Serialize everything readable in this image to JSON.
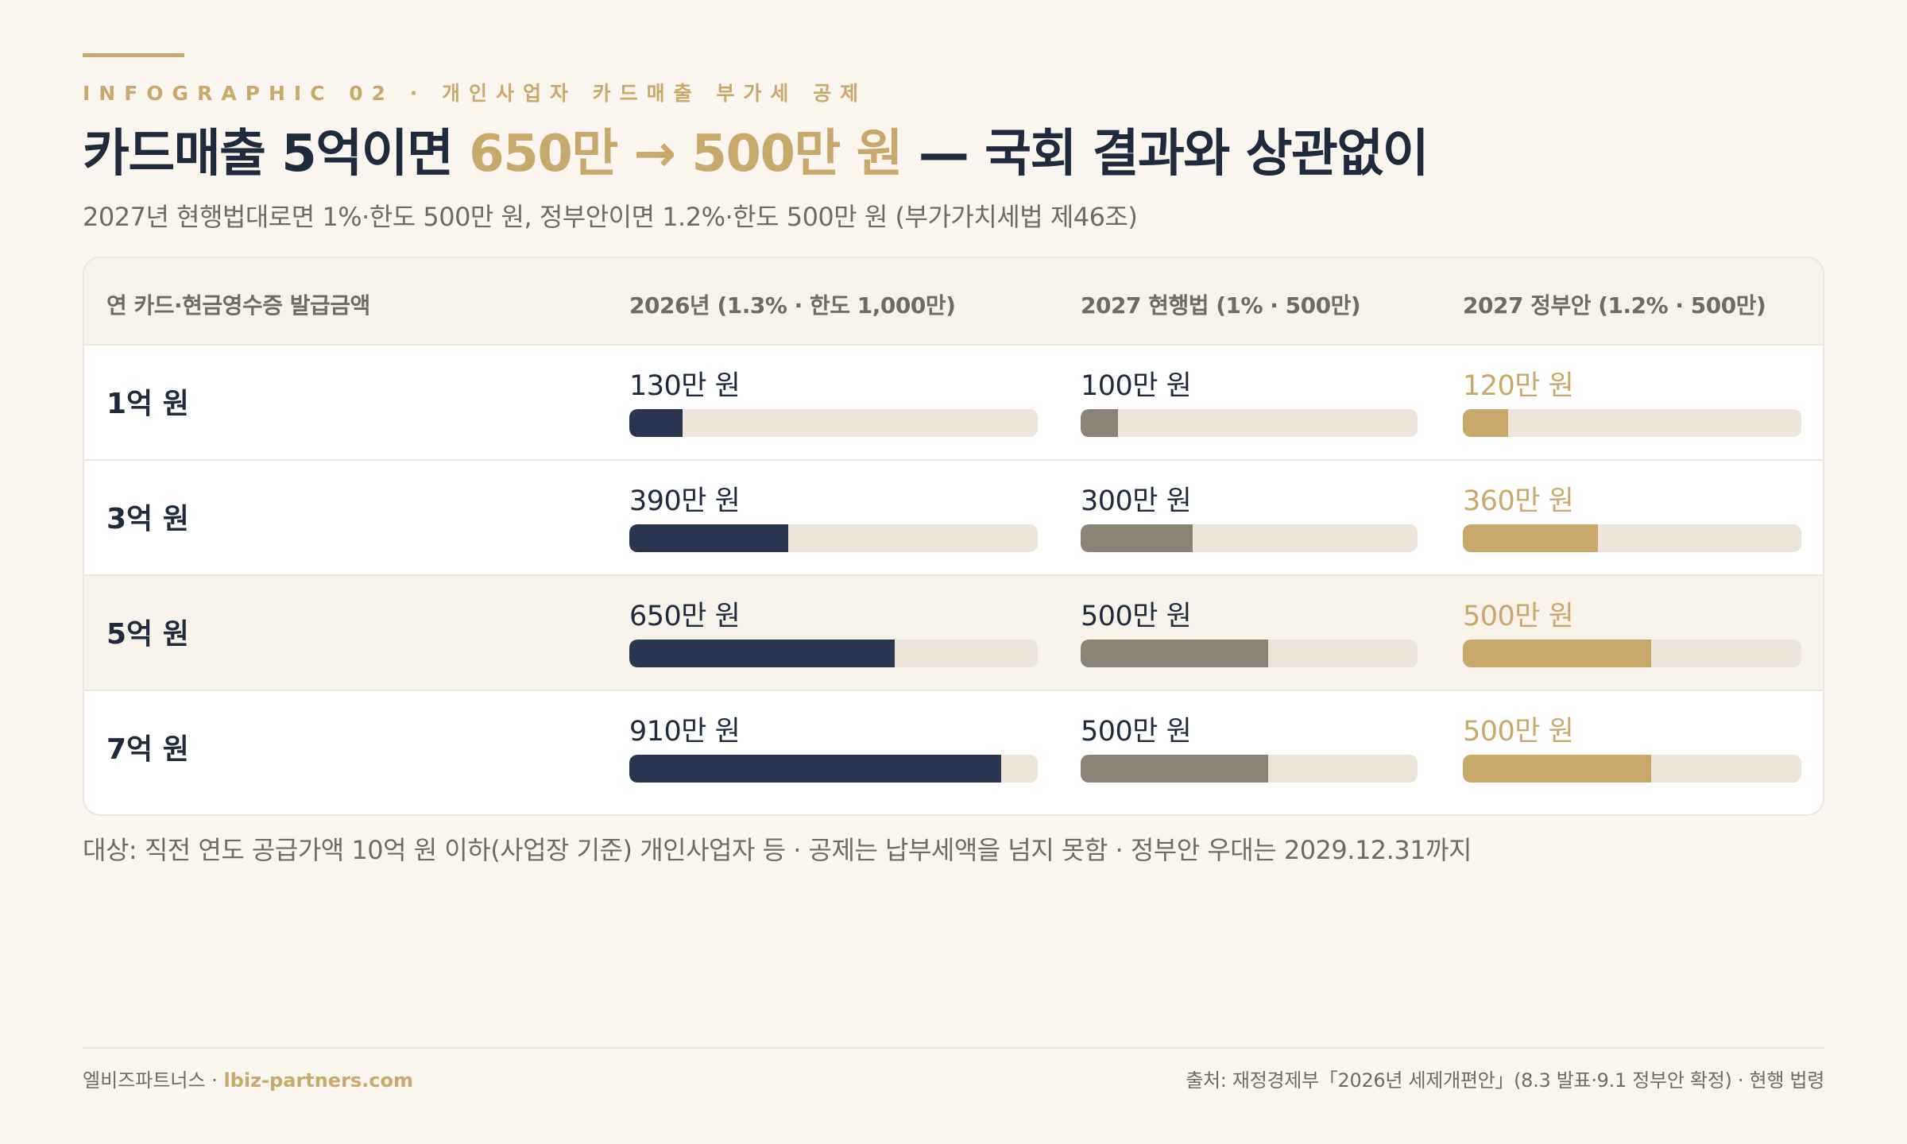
{
  "header": {
    "eyebrow": "INFOGRAPHIC 02 · 개인사업자 카드매출 부가세 공제",
    "title_part1": "카드매출 5억이면 ",
    "title_highlight": "650만 → 500만 원",
    "title_part2": " — 국회 결과와 상관없이",
    "subtitle": "2027년 현행법대로면 1%·한도 500만 원, 정부안이면 1.2%·한도 500만 원 (부가가치세법 제46조)"
  },
  "colors": {
    "accent_gold": "#c9a96b",
    "navy": "#2a3550",
    "gray": "#8b8376",
    "track": "#ede5d9"
  },
  "chart_data": {
    "type": "table",
    "columns": [
      "연 카드·현금영수증 발급금액",
      "2026년 (1.3% · 한도 1,000만)",
      "2027 현행법 (1% · 500만)",
      "2027 정부안 (1.2% · 500만)"
    ],
    "rows": [
      {
        "label": "1억 원",
        "values": [
          130,
          100,
          120
        ],
        "labels": [
          "130만 원",
          "100만 원",
          "120만 원"
        ]
      },
      {
        "label": "3억 원",
        "values": [
          390,
          300,
          360
        ],
        "labels": [
          "390만 원",
          "300만 원",
          "360만 원"
        ]
      },
      {
        "label": "5억 원",
        "values": [
          650,
          500,
          500
        ],
        "labels": [
          "650만 원",
          "500만 원",
          "500만 원"
        ]
      },
      {
        "label": "7억 원",
        "values": [
          910,
          500,
          500
        ],
        "labels": [
          "910만 원",
          "500만 원",
          "500만 원"
        ]
      }
    ],
    "series_max": [
      1000,
      900,
      900
    ],
    "highlight_row": 2
  },
  "note": "대상: 직전 연도 공급가액 10억 원 이하(사업장 기준) 개인사업자 등 · 공제는 납부세액을 넘지 못함 · 정부안 우대는 2029.12.31까지",
  "footer": {
    "brand": "엘비즈파트너스 · ",
    "site": "lbiz-partners.com",
    "source": "출처: 재정경제부「2026년 세제개편안」(8.3 발표·9.1 정부안 확정) · 현행 법령"
  }
}
